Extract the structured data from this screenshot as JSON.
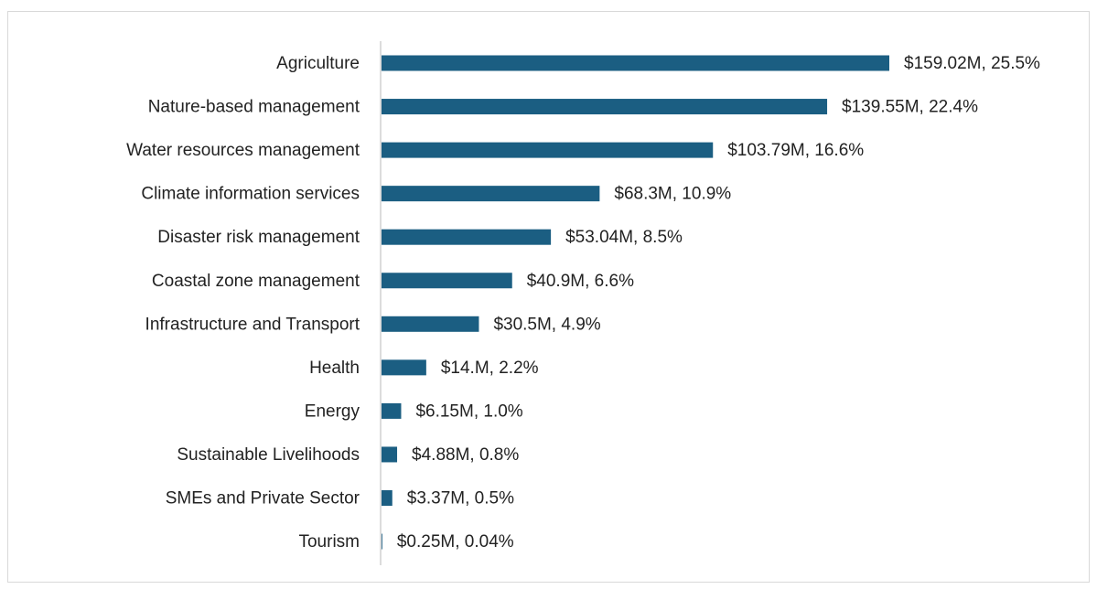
{
  "chart_data": {
    "type": "bar",
    "orientation": "horizontal",
    "categories": [
      "Agriculture",
      "Nature-based management",
      "Water resources management",
      "Climate information services",
      "Disaster risk management",
      "Coastal zone management",
      "Infrastructure and Transport",
      "Health",
      "Energy",
      "Sustainable Livelihoods",
      "SMEs and Private Sector",
      "Tourism"
    ],
    "values": [
      159.02,
      139.55,
      103.79,
      68.3,
      53.04,
      40.9,
      30.5,
      14,
      6.15,
      4.88,
      3.37,
      0.25
    ],
    "value_labels": [
      "$159.02M, 25.5%",
      "$139.55M, 22.4%",
      "$103.79M, 16.6%",
      "$68.3M, 10.9%",
      "$53.04M, 8.5%",
      "$40.9M, 6.6%",
      "$30.5M, 4.9%",
      "$14.M, 2.2%",
      "$6.15M, 1.0%",
      "$4.88M, 0.8%",
      "$3.37M, 0.5%",
      "$0.25M, 0.04%"
    ],
    "color": "#1b5e82"
  }
}
